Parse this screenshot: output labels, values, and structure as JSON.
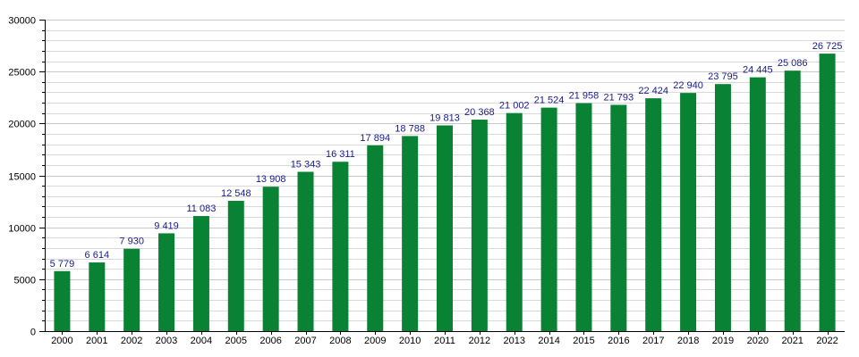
{
  "chart_data": {
    "type": "bar",
    "title": "",
    "xlabel": "",
    "ylabel": "",
    "categories": [
      "2000",
      "2001",
      "2002",
      "2003",
      "2004",
      "2005",
      "2006",
      "2007",
      "2008",
      "2009",
      "2010",
      "2011",
      "2012",
      "2013",
      "2014",
      "2015",
      "2016",
      "2017",
      "2018",
      "2019",
      "2020",
      "2021",
      "2022"
    ],
    "values": [
      5779,
      6614,
      7930,
      9419,
      11083,
      12548,
      13908,
      15343,
      16311,
      17894,
      18788,
      19813,
      20368,
      21002,
      21524,
      21958,
      21793,
      22424,
      22940,
      23795,
      24445,
      25086,
      26725
    ],
    "value_labels": [
      "5 779",
      "6 614",
      "7 930",
      "9 419",
      "11 083",
      "12 548",
      "13 908",
      "15 343",
      "16 311",
      "17 894",
      "18 788",
      "19 813",
      "20 368",
      "21 002",
      "21 524",
      "21 958",
      "21 793",
      "22 424",
      "22 940",
      "23 795",
      "24 445",
      "25 086",
      "26 725"
    ],
    "ylim": [
      0,
      30000
    ],
    "yticks": [
      0,
      5000,
      10000,
      15000,
      20000,
      25000,
      30000
    ],
    "minor_step": 1000,
    "grid": true,
    "legend": "none",
    "colors": {
      "bar": "#0a8234",
      "grid": "#d9d9d9",
      "axis": "#000000",
      "label": "#1a1a8c"
    }
  }
}
